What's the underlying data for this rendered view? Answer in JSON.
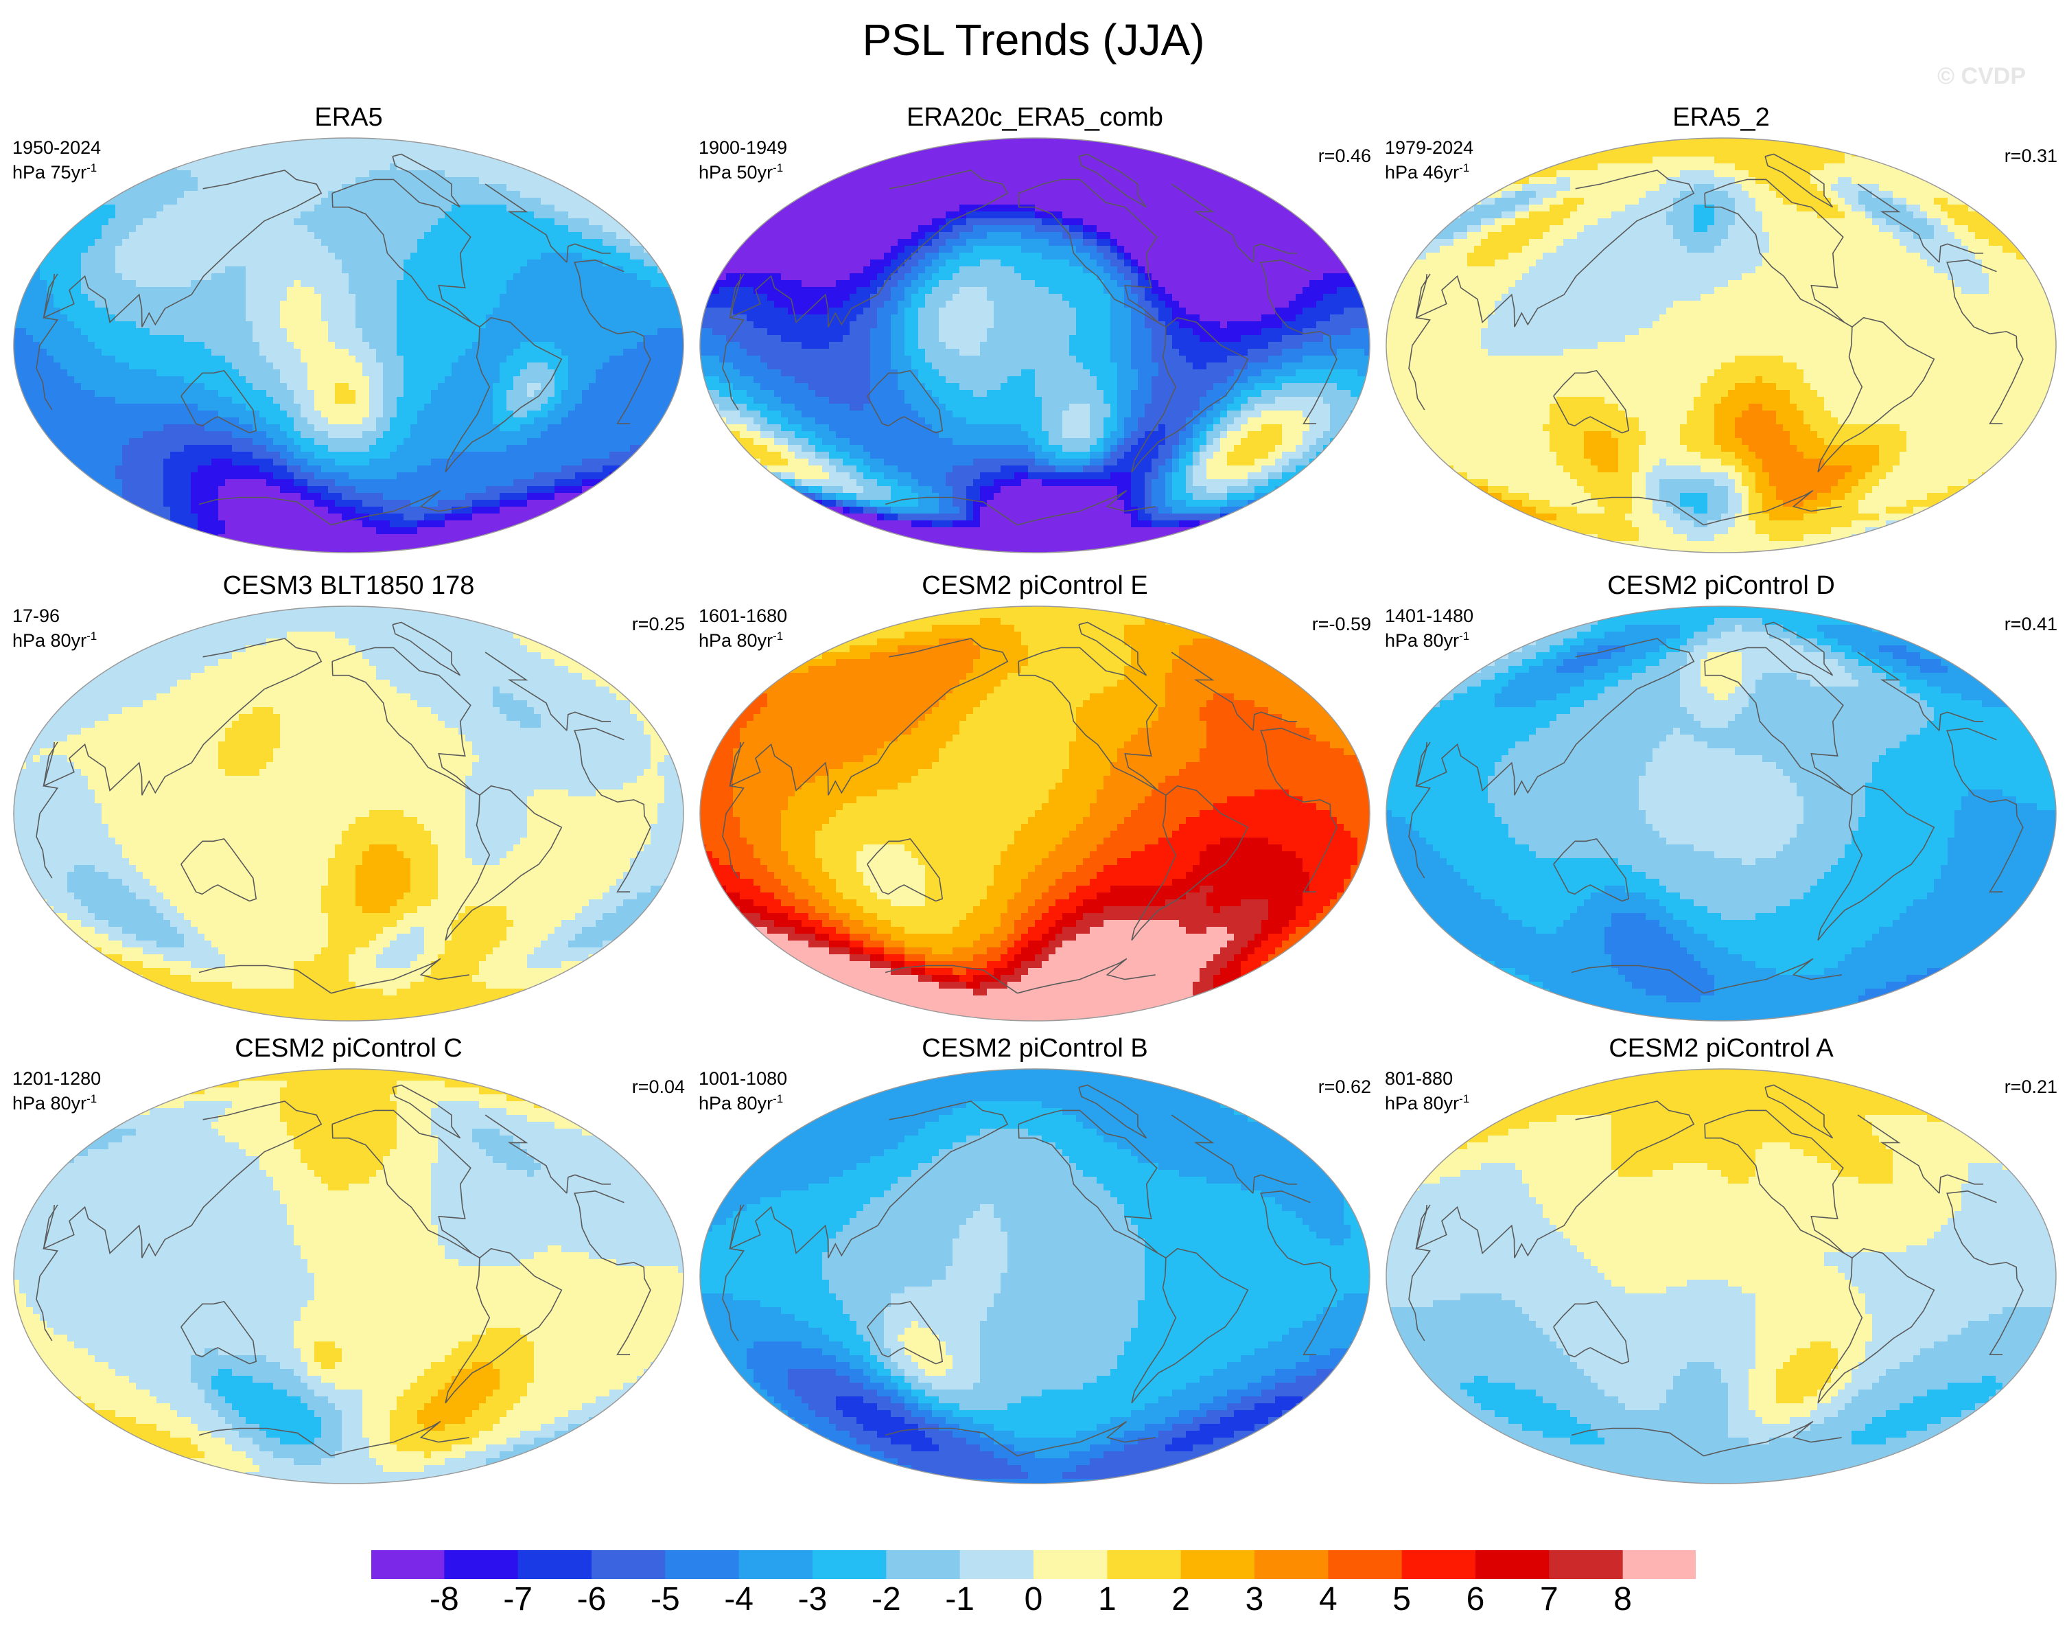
{
  "title": "PSL Trends (JJA)",
  "watermark": "© CVDP",
  "chart_data": [
    {
      "type": "heatmap",
      "title": "ERA5",
      "period": "1950-2024",
      "units_base": "hPa 75yr",
      "units_exp": "-1",
      "r": "",
      "fields": [
        [
          -46,
          -20,
          12,
          3.0,
          1.1
        ],
        [
          -150,
          -25,
          16,
          3.2,
          1.2
        ],
        [
          -175,
          15,
          20,
          1.6,
          0.9
        ],
        [
          100,
          45,
          28,
          1.8,
          1.0
        ],
        [
          60,
          40,
          20,
          1.2,
          0.7
        ],
        [
          40,
          0,
          20,
          -0.6,
          0.6
        ],
        [
          0,
          -65,
          120,
          -4.5,
          1.5
        ],
        [
          120,
          -78,
          30,
          -5.2,
          0.6
        ],
        [
          -100,
          75,
          30,
          0.8,
          0.8
        ]
      ]
    },
    {
      "type": "heatmap",
      "title": "ERA20c_ERA5_comb",
      "period": "1900-1949",
      "units_base": "hPa 50yr",
      "units_exp": "-1",
      "r": "r=0.46",
      "fields": [
        [
          -120,
          -48,
          20,
          5.8,
          1.2
        ],
        [
          -20,
          -45,
          25,
          4.5,
          1.1
        ],
        [
          20,
          -45,
          30,
          4.8,
          1.0
        ],
        [
          -70,
          -74,
          25,
          -8.2,
          0.7
        ],
        [
          0,
          -68,
          120,
          -6.0,
          1.6
        ],
        [
          -150,
          -72,
          20,
          -6.5,
          1.0
        ],
        [
          90,
          50,
          35,
          -5.5,
          1.2
        ],
        [
          -30,
          75,
          40,
          -7.5,
          0.8
        ],
        [
          -60,
          70,
          40,
          -7.0,
          0.8
        ],
        [
          -100,
          45,
          20,
          2.8,
          0.9
        ],
        [
          160,
          15,
          20,
          1.8,
          1.2
        ],
        [
          -120,
          20,
          25,
          1.3,
          1.2
        ],
        [
          120,
          -10,
          20,
          -1.0,
          0.8
        ]
      ]
    },
    {
      "type": "heatmap",
      "title": "ERA5_2",
      "period": "1979-2024",
      "units_base": "hPa 46yr",
      "units_exp": "-1",
      "r": "r=0.31",
      "fields": [
        [
          -130,
          -38,
          22,
          3.5,
          1.0
        ],
        [
          130,
          -50,
          22,
          2.5,
          1.0
        ],
        [
          160,
          -63,
          12,
          -3.5,
          0.6
        ],
        [
          -150,
          -63,
          12,
          -3.2,
          0.6
        ],
        [
          -45,
          -55,
          15,
          2.5,
          0.8
        ],
        [
          -90,
          -55,
          15,
          1.5,
          0.8
        ],
        [
          -45,
          75,
          20,
          2.0,
          0.9
        ],
        [
          0,
          60,
          12,
          -3.0,
          0.8
        ],
        [
          -165,
          55,
          12,
          -2.2,
          0.9
        ],
        [
          60,
          50,
          20,
          1.5,
          0.8
        ],
        [
          120,
          30,
          20,
          -1.0,
          0.7
        ]
      ]
    },
    {
      "type": "heatmap",
      "title": "CESM3 BLT1850 178",
      "period": "17-96",
      "units_base": "hPa 80yr",
      "units_exp": "-1",
      "r": "r=0.25",
      "fields": [
        [
          -130,
          -28,
          22,
          2.5,
          1.0
        ],
        [
          -100,
          -58,
          12,
          -2.5,
          0.7
        ],
        [
          60,
          -45,
          18,
          -2.5,
          0.8
        ],
        [
          150,
          30,
          14,
          1.8,
          0.8
        ],
        [
          -30,
          45,
          14,
          -1.2,
          0.7
        ],
        [
          -60,
          -65,
          30,
          1.5,
          0.6
        ],
        [
          100,
          -55,
          25,
          1.2,
          0.8
        ],
        [
          -75,
          -15,
          15,
          -0.7,
          0.6
        ]
      ]
    },
    {
      "type": "heatmap",
      "title": "CESM2 piControl E",
      "period": "1601-1680",
      "units_base": "hPa 80yr",
      "units_exp": "-1",
      "r": "r=-0.59",
      "fields": [
        [
          0,
          -72,
          120,
          5.8,
          1.3
        ],
        [
          -60,
          -78,
          40,
          6.0,
          0.8
        ],
        [
          120,
          -40,
          30,
          -2.8,
          0.9
        ],
        [
          -70,
          -33,
          14,
          -1.8,
          0.8
        ],
        [
          -30,
          -45,
          12,
          -1.8,
          0.7
        ],
        [
          80,
          -15,
          30,
          -0.9,
          0.7
        ],
        [
          -150,
          40,
          25,
          -1.0,
          0.9
        ],
        [
          -20,
          45,
          18,
          1.0,
          0.7
        ],
        [
          100,
          55,
          30,
          1.0,
          0.8
        ],
        [
          -60,
          75,
          25,
          -1.5,
          0.7
        ]
      ]
    },
    {
      "type": "heatmap",
      "title": "CESM2 piControl D",
      "period": "1401-1480",
      "units_base": "hPa 80yr",
      "units_exp": "-1",
      "r": "r=0.41",
      "fields": [
        [
          0,
          -62,
          120,
          -3.0,
          1.2
        ],
        [
          150,
          -55,
          20,
          -2.5,
          0.8
        ],
        [
          60,
          72,
          20,
          -2.8,
          0.8
        ],
        [
          -150,
          60,
          10,
          2.3,
          0.8
        ],
        [
          -45,
          72,
          20,
          1.3,
          0.7
        ],
        [
          -120,
          -5,
          25,
          0.9,
          0.9
        ],
        [
          30,
          -20,
          20,
          -0.8,
          0.6
        ],
        [
          -10,
          0,
          15,
          -0.6,
          0.6
        ]
      ]
    },
    {
      "type": "heatmap",
      "title": "CESM2 piControl C",
      "period": "1201-1280",
      "units_base": "hPa 80yr",
      "units_exp": "-1",
      "r": "r=0.04",
      "fields": [
        [
          -60,
          -52,
          22,
          2.5,
          1.0
        ],
        [
          160,
          -62,
          20,
          -2.3,
          0.9
        ],
        [
          120,
          -48,
          12,
          -1.8,
          0.8
        ],
        [
          -165,
          -35,
          10,
          1.6,
          0.7
        ],
        [
          -160,
          65,
          25,
          2.0,
          0.9
        ],
        [
          -20,
          55,
          15,
          -1.3,
          0.8
        ],
        [
          -70,
          30,
          12,
          -1.0,
          0.7
        ],
        [
          140,
          25,
          25,
          -0.8,
          0.6
        ]
      ]
    },
    {
      "type": "heatmap",
      "title": "CESM2 piControl B",
      "period": "1001-1080",
      "units_base": "hPa 80yr",
      "units_exp": "-1",
      "r": "r=0.62",
      "fields": [
        [
          140,
          -35,
          15,
          2.5,
          1.0
        ],
        [
          0,
          -62,
          120,
          -3.0,
          1.2
        ],
        [
          60,
          -62,
          25,
          -3.5,
          0.8
        ],
        [
          -120,
          -30,
          15,
          0.9,
          0.7
        ],
        [
          -60,
          75,
          30,
          -1.5,
          0.8
        ],
        [
          20,
          40,
          30,
          -0.8,
          0.7
        ],
        [
          80,
          60,
          25,
          -1.0,
          0.7
        ]
      ]
    },
    {
      "type": "heatmap",
      "title": "CESM2 piControl A",
      "period": "801-880",
      "units_base": "hPa 80yr",
      "units_exp": "-1",
      "r": "r=0.21",
      "fields": [
        [
          -90,
          -45,
          15,
          2.0,
          0.9
        ],
        [
          20,
          -60,
          40,
          -2.0,
          1.0
        ],
        [
          -165,
          -50,
          15,
          -1.5,
          0.8
        ],
        [
          150,
          65,
          25,
          1.5,
          0.8
        ],
        [
          -45,
          60,
          20,
          1.8,
          0.7
        ],
        [
          -135,
          45,
          15,
          1.0,
          0.7
        ],
        [
          90,
          -25,
          25,
          -1.0,
          0.6
        ]
      ]
    }
  ],
  "colorbar": {
    "labels": [
      "-8",
      "-7",
      "-6",
      "-5",
      "-4",
      "-3",
      "-2",
      "-1",
      "0",
      "1",
      "2",
      "3",
      "4",
      "5",
      "6",
      "7",
      "8"
    ],
    "colors": [
      "#7b28e8",
      "#2c10ee",
      "#1a3ae6",
      "#3a64e0",
      "#2a82ec",
      "#28a2ee",
      "#24bef4",
      "#86cbee",
      "#b9e0f3",
      "#fdf8a8",
      "#fddc32",
      "#fdb400",
      "#fd8c00",
      "#fd5c00",
      "#fd1a00",
      "#dd0000",
      "#cc2a2a",
      "#ffb4b4"
    ]
  }
}
